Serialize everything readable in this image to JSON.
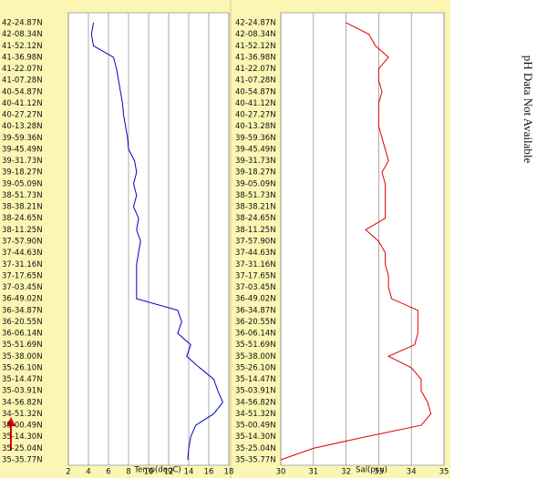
{
  "chart_data": [
    {
      "type": "line",
      "orientation": "horizontal",
      "xlabel": "Temp(degC)",
      "categories": [
        "42-24.87N",
        "42-08.34N",
        "41-52.12N",
        "41-36.98N",
        "41-22.07N",
        "41-07.28N",
        "40-54.87N",
        "40-41.12N",
        "40-27.27N",
        "40-13.28N",
        "39-59.36N",
        "39-45.49N",
        "39-31.73N",
        "39-18.27N",
        "39-05.09N",
        "38-51.73N",
        "38-38.21N",
        "38-24.65N",
        "38-11.25N",
        "37-57.90N",
        "37-44.63N",
        "37-31.16N",
        "37-17.65N",
        "37-03.45N",
        "36-49.02N",
        "36-34.87N",
        "36-20.55N",
        "36-06.14N",
        "35-51.69N",
        "35-38.00N",
        "35-26.10N",
        "35-14.47N",
        "35-03.91N",
        "34-56.82N",
        "34-51.32N",
        "35-00.49N",
        "35-14.30N",
        "35-25.04N",
        "35-35.77N"
      ],
      "series": [
        {
          "color": "#0000cc",
          "values": [
            4.5,
            4.3,
            4.5,
            6.5,
            6.8,
            7.0,
            7.2,
            7.4,
            7.5,
            7.7,
            7.9,
            8.0,
            8.6,
            8.8,
            8.5,
            8.8,
            8.5,
            9.0,
            8.8,
            9.2,
            9.0,
            8.8,
            8.8,
            8.8,
            8.8,
            12.9,
            13.3,
            12.9,
            14.2,
            13.8,
            15.1,
            16.5,
            16.9,
            17.4,
            16.5,
            14.7,
            14.2,
            14.0,
            13.9
          ]
        }
      ],
      "xlim": [
        2,
        18
      ],
      "xticks": [
        2,
        4,
        6,
        8,
        10,
        12,
        14,
        16,
        18
      ],
      "grid": true
    },
    {
      "type": "line",
      "orientation": "horizontal",
      "xlabel": "Sal(psu)",
      "categories": [
        "42-24.87N",
        "42-08.34N",
        "41-52.12N",
        "41-36.98N",
        "41-22.07N",
        "41-07.28N",
        "40-54.87N",
        "40-41.12N",
        "40-27.27N",
        "40-13.28N",
        "39-59.36N",
        "39-45.49N",
        "39-31.73N",
        "39-18.27N",
        "39-05.09N",
        "38-51.73N",
        "38-38.21N",
        "38-24.65N",
        "38-11.25N",
        "37-57.90N",
        "37-44.63N",
        "37-31.16N",
        "37-17.65N",
        "37-03.45N",
        "36-49.02N",
        "36-34.87N",
        "36-20.55N",
        "36-06.14N",
        "35-51.69N",
        "35-38.00N",
        "35-26.10N",
        "35-14.47N",
        "35-03.91N",
        "34-56.82N",
        "34-51.32N",
        "35-00.49N",
        "35-14.30N",
        "35-25.04N",
        "35-35.77N"
      ],
      "series": [
        {
          "color": "#dd0000",
          "values": [
            32.0,
            32.7,
            32.9,
            33.3,
            33.0,
            33.0,
            33.1,
            33.0,
            33.0,
            33.0,
            33.1,
            33.2,
            33.3,
            33.1,
            33.2,
            33.2,
            33.2,
            33.2,
            32.6,
            33.0,
            33.2,
            33.2,
            33.3,
            33.3,
            33.4,
            34.2,
            34.2,
            34.2,
            34.1,
            33.3,
            34.0,
            34.3,
            34.3,
            34.5,
            34.6,
            34.3,
            32.6,
            31.0,
            30.0
          ]
        }
      ],
      "xlim": [
        30,
        35
      ],
      "xticks": [
        30,
        31,
        32,
        33,
        34,
        35
      ],
      "grid": true
    }
  ],
  "note": "pH Data Not Available"
}
